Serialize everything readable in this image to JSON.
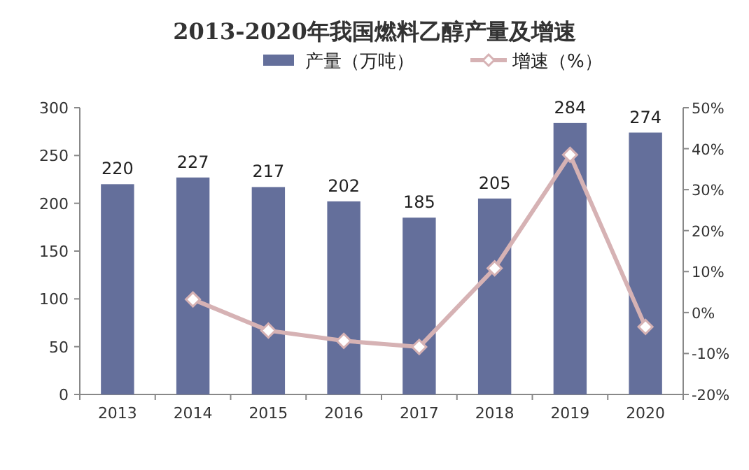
{
  "chart_data": {
    "type": "bar",
    "title": "2013-2020年我国燃料乙醇产量及增速",
    "categories": [
      "2013",
      "2014",
      "2015",
      "2016",
      "2017",
      "2018",
      "2019",
      "2020"
    ],
    "series": [
      {
        "name": "产量（万吨）",
        "color": "#646f9b",
        "values": [
          220,
          227,
          217,
          202,
          185,
          205,
          284,
          274
        ],
        "value_labels": [
          "220",
          "227",
          "217",
          "202",
          "185",
          "205",
          "284",
          "274"
        ]
      },
      {
        "name": "增速（%）",
        "type": "line",
        "axis": "y2",
        "color": "#d6b2b4",
        "marker": "diamond",
        "values": [
          null,
          3.2,
          -4.4,
          -6.9,
          -8.4,
          10.8,
          38.5,
          -3.5
        ]
      }
    ],
    "ylim": [
      0,
      300
    ],
    "yticks": [
      0,
      50,
      100,
      150,
      200,
      250,
      300
    ],
    "y2lim": [
      -20,
      50
    ],
    "y2ticks": [
      {
        "value": -20,
        "label": "-20%"
      },
      {
        "value": -10,
        "label": "-10%"
      },
      {
        "value": 0,
        "label": "0%"
      },
      {
        "value": 10,
        "label": "10%"
      },
      {
        "value": 20,
        "label": "20%"
      },
      {
        "value": 30,
        "label": "30%"
      },
      {
        "value": 40,
        "label": "40%"
      },
      {
        "value": 50,
        "label": "50%"
      }
    ],
    "legend": "top",
    "grid": false
  }
}
